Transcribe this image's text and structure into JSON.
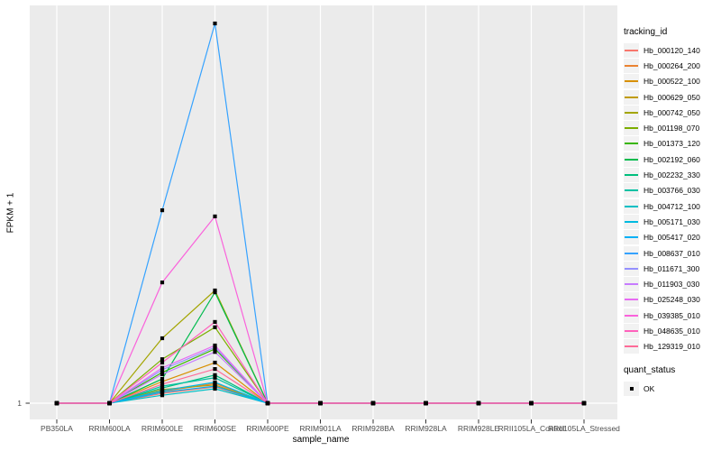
{
  "figure": {
    "y_axis_title": "FPKM + 1",
    "x_axis_title": "sample_name",
    "y_tick_label": "1"
  },
  "legend": {
    "tracking_title": "tracking_id",
    "quant_title": "quant_status",
    "quant_items": [
      {
        "label": "OK",
        "marker": "black-filled-square"
      }
    ]
  },
  "colors": {
    "panel_bg": "#EBEBEB",
    "gridline": "#FFFFFF",
    "tick_mark": "#333333",
    "axis_text": "#4D4D4D",
    "point": "#000000"
  },
  "chart_data": {
    "type": "line",
    "title": "",
    "xlabel": "sample_name",
    "ylabel": "FPKM + 1",
    "x_categories": [
      "PB350LA",
      "RRIM600LA",
      "RRIM600LE",
      "RRIM600SE",
      "RRIM600PE",
      "RRIM901LA",
      "RRIM928BA",
      "RRIM928LA",
      "RRIM928LE",
      "RRII105LA_Control",
      "RRII105LA_Stressed"
    ],
    "y_tick_labels": [
      "1"
    ],
    "y_baseline_value": 1,
    "value_note": "Only the y=1 tick is labeled; series values are expressed as fraction of the tallest peak (Hb_008637_010 at RRIM600SE). 0 = baseline FPKM+1 = 1. All series are flat at 1 except at RRIM600LE and RRIM600SE.",
    "legend_position": "right",
    "grid": "gray panel, white gridlines, single horizontal gridline at y=1",
    "point_marker": "filled black square (quant_status OK)",
    "series": [
      {
        "name": "Hb_000120_140",
        "color": "#F8766D",
        "values": [
          0,
          0,
          0.026,
          0.043,
          0,
          0,
          0,
          0,
          0,
          0,
          0
        ]
      },
      {
        "name": "Hb_000264_200",
        "color": "#EA8331",
        "values": [
          0,
          0,
          0.031,
          0.052,
          0,
          0,
          0,
          0,
          0,
          0,
          0
        ]
      },
      {
        "name": "Hb_000522_100",
        "color": "#D89000",
        "values": [
          0,
          0,
          0.057,
          0.107,
          0,
          0,
          0,
          0,
          0,
          0,
          0
        ]
      },
      {
        "name": "Hb_000629_050",
        "color": "#C09B00",
        "values": [
          0,
          0,
          0.036,
          0.048,
          0,
          0,
          0,
          0,
          0,
          0,
          0
        ]
      },
      {
        "name": "Hb_000742_050",
        "color": "#A3A500",
        "values": [
          0,
          0,
          0.171,
          0.297,
          0,
          0,
          0,
          0,
          0,
          0,
          0
        ]
      },
      {
        "name": "Hb_001198_070",
        "color": "#7CAE00",
        "values": [
          0,
          0,
          0.116,
          0.2,
          0,
          0,
          0,
          0,
          0,
          0,
          0
        ]
      },
      {
        "name": "Hb_001373_120",
        "color": "#39B600",
        "values": [
          0,
          0,
          0.081,
          0.143,
          0,
          0,
          0,
          0,
          0,
          0,
          0
        ]
      },
      {
        "name": "Hb_002192_060",
        "color": "#00BB4E",
        "values": [
          0,
          0,
          0.064,
          0.292,
          0,
          0,
          0,
          0,
          0,
          0,
          0
        ]
      },
      {
        "name": "Hb_002232_330",
        "color": "#00BF7D",
        "values": [
          0,
          0,
          0.04,
          0.074,
          0,
          0,
          0,
          0,
          0,
          0,
          0
        ]
      },
      {
        "name": "Hb_003766_030",
        "color": "#00C1A3",
        "values": [
          0,
          0,
          0.045,
          0.067,
          0,
          0,
          0,
          0,
          0,
          0,
          0
        ]
      },
      {
        "name": "Hb_004712_100",
        "color": "#00BFC4",
        "values": [
          0,
          0,
          0.021,
          0.038,
          0,
          0,
          0,
          0,
          0,
          0,
          0
        ]
      },
      {
        "name": "Hb_005171_030",
        "color": "#00BAE0",
        "values": [
          0,
          0,
          0.033,
          0.055,
          0,
          0,
          0,
          0,
          0,
          0,
          0
        ]
      },
      {
        "name": "Hb_005417_020",
        "color": "#00B0F6",
        "values": [
          0,
          0,
          0.029,
          0.045,
          0,
          0,
          0,
          0,
          0,
          0,
          0
        ]
      },
      {
        "name": "Hb_008637_010",
        "color": "#35A2FF",
        "values": [
          0,
          0,
          0.508,
          1.0,
          0,
          0,
          0,
          0,
          0,
          0,
          0
        ]
      },
      {
        "name": "Hb_011671_300",
        "color": "#9590FF",
        "values": [
          0,
          0,
          0.088,
          0.147,
          0,
          0,
          0,
          0,
          0,
          0,
          0
        ]
      },
      {
        "name": "Hb_011903_030",
        "color": "#C77CFF",
        "values": [
          0,
          0,
          0.076,
          0.135,
          0,
          0,
          0,
          0,
          0,
          0,
          0
        ]
      },
      {
        "name": "Hb_025248_030",
        "color": "#E76BF3",
        "values": [
          0,
          0,
          0.093,
          0.152,
          0,
          0,
          0,
          0,
          0,
          0,
          0
        ]
      },
      {
        "name": "Hb_039385_010",
        "color": "#FA62DB",
        "values": [
          0,
          0,
          0.318,
          0.492,
          0,
          0,
          0,
          0,
          0,
          0,
          0
        ]
      },
      {
        "name": "Hb_048635_010",
        "color": "#FF62BC",
        "values": [
          0,
          0,
          0.107,
          0.214,
          0,
          0,
          0,
          0,
          0,
          0,
          0
        ]
      },
      {
        "name": "Hb_129319_010",
        "color": "#FF6A98",
        "values": [
          0,
          0,
          0.05,
          0.09,
          0,
          0,
          0,
          0,
          0,
          0,
          0
        ]
      }
    ]
  }
}
